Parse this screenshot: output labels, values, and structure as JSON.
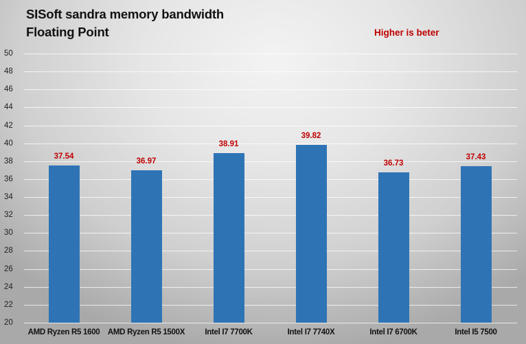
{
  "chart_data": {
    "type": "bar",
    "title": "SISoft sandra memory bandwidth Floating Point",
    "title_lines": [
      "SISoft sandra memory bandwidth",
      "Floating Point"
    ],
    "annotation": "Higher is beter",
    "categories": [
      "AMD Ryzen R5 1600",
      "AMD Ryzen R5 1500X",
      "Intel I7 7700K",
      "Intel I7 7740X",
      "Intel I7 6700K",
      "Intel I5 7500"
    ],
    "values": [
      37.54,
      36.97,
      38.91,
      39.82,
      36.73,
      37.43
    ],
    "value_labels": [
      "37.54",
      "36.97",
      "38.91",
      "39.82",
      "36.73",
      "37.43"
    ],
    "xlabel": "",
    "ylabel": "",
    "ylim": [
      20,
      50
    ],
    "yticks": [
      "20",
      "22",
      "24",
      "26",
      "28",
      "30",
      "32",
      "34",
      "36",
      "38",
      "40",
      "42",
      "44",
      "46",
      "48",
      "50"
    ],
    "grid": true,
    "legend": null,
    "colors": {
      "bar": "#2e74b5",
      "data_label": "#c00000",
      "annotation": "#c00000"
    }
  }
}
